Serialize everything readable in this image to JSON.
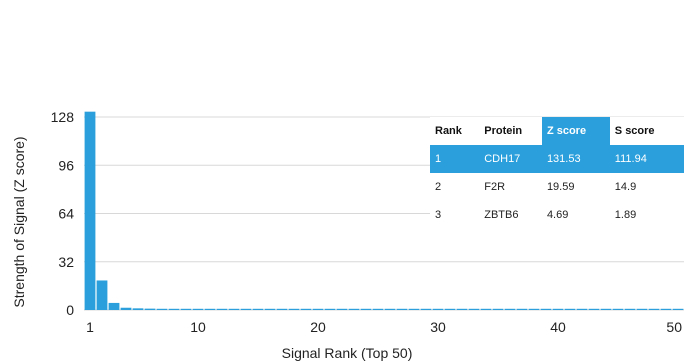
{
  "chart_data": {
    "type": "bar",
    "xlabel": "Signal Rank (Top 50)",
    "ylabel": "Strength of Signal (Z score)",
    "x_ticks": [
      1,
      10,
      20,
      30,
      40,
      50
    ],
    "y_ticks": [
      0,
      32,
      64,
      96,
      128
    ],
    "xlim": [
      1,
      50
    ],
    "ylim": [
      0,
      128
    ],
    "bar_color": "#2a9fdc",
    "grid": true,
    "categories": [
      1,
      2,
      3,
      4,
      5,
      6,
      7,
      8,
      9,
      10,
      11,
      12,
      13,
      14,
      15,
      16,
      17,
      18,
      19,
      20,
      21,
      22,
      23,
      24,
      25,
      26,
      27,
      28,
      29,
      30,
      31,
      32,
      33,
      34,
      35,
      36,
      37,
      38,
      39,
      40,
      41,
      42,
      43,
      44,
      45,
      46,
      47,
      48,
      49,
      50
    ],
    "values": [
      131.53,
      19.59,
      4.69,
      1.5,
      1.1,
      0.9,
      0.8,
      0.7,
      0.65,
      0.6,
      0.58,
      0.56,
      0.54,
      0.52,
      0.5,
      0.49,
      0.48,
      0.47,
      0.46,
      0.45,
      0.44,
      0.43,
      0.42,
      0.41,
      0.4,
      0.39,
      0.38,
      0.37,
      0.36,
      0.35,
      0.34,
      0.33,
      0.32,
      0.31,
      0.3,
      0.3,
      0.29,
      0.29,
      0.28,
      0.28,
      0.27,
      0.27,
      0.26,
      0.26,
      0.25,
      0.25,
      0.24,
      0.24,
      0.23,
      0.23
    ]
  },
  "table": {
    "headers": [
      "Rank",
      "Protein",
      "Z score",
      "S score"
    ],
    "highlight_header_index": 2,
    "highlight_row_index": 0,
    "highlight_color": "#2a9fdc",
    "rows": [
      [
        "1",
        "CDH17",
        "131.53",
        "111.94"
      ],
      [
        "2",
        "F2R",
        "19.59",
        "14.9"
      ],
      [
        "3",
        "ZBTB6",
        "4.69",
        "1.89"
      ]
    ]
  }
}
